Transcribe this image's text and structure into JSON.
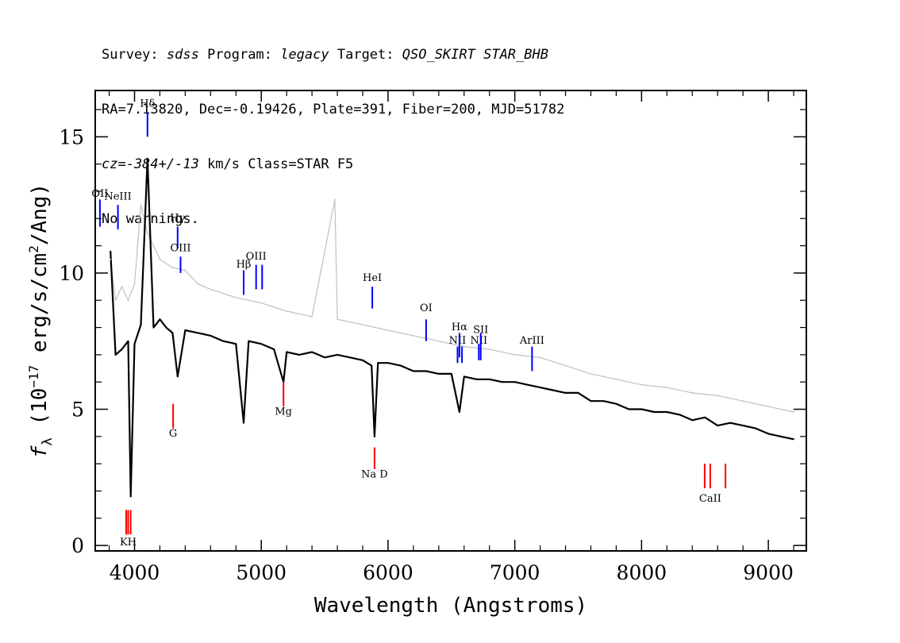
{
  "header": {
    "line1": {
      "survey_label": "Survey: ",
      "survey": "sdss",
      "program_label": " Program: ",
      "program": "legacy",
      "target_label": " Target: ",
      "target": "QSO_SKIRT STAR_BHB"
    },
    "line2": "RA=7.13820, Dec=-0.19426, Plate=391, Fiber=200, MJD=51782",
    "line3": {
      "cz": "cz=-384+/-13",
      "rest": " km/s Class=STAR F5"
    },
    "line4": "No warnings."
  },
  "colors": {
    "flux": "#000000",
    "error": "#c0c0c0",
    "emission_lines": "#0000ff",
    "absorption_lines": "#ff0000"
  },
  "chart_data": {
    "type": "line",
    "xlabel": "Wavelength (Angstroms)",
    "ylabel": "f_λ (10^-17 erg/s/cm²/Ang)",
    "ylabel_parts": {
      "sym": "f",
      "sub": "λ",
      "pre": " (10",
      "exp": "−17",
      "mid": " erg/s/cm",
      "exp2": "2",
      "post": "/Ang)"
    },
    "xlim": [
      3690,
      9300
    ],
    "ylim": [
      -0.2,
      16.7
    ],
    "xticks": [
      4000,
      5000,
      6000,
      7000,
      8000,
      9000
    ],
    "xtick_labels": [
      "4000",
      "5000",
      "6000",
      "7000",
      "8000",
      "9000"
    ],
    "yticks": [
      0,
      5,
      10,
      15
    ],
    "ytick_labels": [
      "0",
      "5",
      "10",
      "15"
    ],
    "grid": false,
    "series": [
      {
        "role": "flux",
        "x": [
          3810,
          3850,
          3900,
          3950,
          3970,
          4000,
          4050,
          4102,
          4150,
          4200,
          4250,
          4300,
          4340,
          4400,
          4500,
          4600,
          4700,
          4800,
          4861,
          4900,
          5000,
          5100,
          5175,
          5200,
          5300,
          5400,
          5500,
          5600,
          5700,
          5800,
          5870,
          5893,
          5920,
          6000,
          6100,
          6200,
          6300,
          6400,
          6500,
          6563,
          6600,
          6700,
          6800,
          6900,
          7000,
          7100,
          7200,
          7300,
          7400,
          7500,
          7600,
          7700,
          7800,
          7900,
          8000,
          8100,
          8200,
          8300,
          8400,
          8500,
          8600,
          8700,
          8800,
          8900,
          9000,
          9100,
          9200
        ],
        "y": [
          10.8,
          7.0,
          7.2,
          7.5,
          1.8,
          7.4,
          8.1,
          14.2,
          8.0,
          8.3,
          8.0,
          7.8,
          6.2,
          7.9,
          7.8,
          7.7,
          7.5,
          7.4,
          4.5,
          7.5,
          7.4,
          7.2,
          6.0,
          7.1,
          7.0,
          7.1,
          6.9,
          7.0,
          6.9,
          6.8,
          6.6,
          4.0,
          6.7,
          6.7,
          6.6,
          6.4,
          6.4,
          6.3,
          6.3,
          4.9,
          6.2,
          6.1,
          6.1,
          6.0,
          6.0,
          5.9,
          5.8,
          5.7,
          5.6,
          5.6,
          5.3,
          5.3,
          5.2,
          5.0,
          5.0,
          4.9,
          4.9,
          4.8,
          4.6,
          4.7,
          4.4,
          4.5,
          4.4,
          4.3,
          4.1,
          4.0,
          3.9
        ]
      },
      {
        "role": "error",
        "x": [
          3810,
          3850,
          3900,
          3950,
          4000,
          4050,
          4100,
          4200,
          4300,
          4400,
          4500,
          4600,
          4800,
          5000,
          5200,
          5400,
          5580,
          5600,
          5800,
          6000,
          6200,
          6400,
          6600,
          6800,
          7000,
          7200,
          7400,
          7600,
          7800,
          8000,
          8200,
          8400,
          8600,
          8800,
          9000,
          9200
        ],
        "y": [
          10.5,
          9.0,
          9.5,
          9.0,
          9.6,
          12.5,
          11.5,
          10.5,
          10.2,
          10.1,
          9.6,
          9.4,
          9.1,
          8.9,
          8.6,
          8.4,
          12.7,
          8.3,
          8.1,
          7.9,
          7.7,
          7.5,
          7.3,
          7.2,
          7.0,
          6.9,
          6.6,
          6.3,
          6.1,
          5.9,
          5.8,
          5.6,
          5.5,
          5.3,
          5.1,
          4.9
        ]
      }
    ],
    "line_markers": [
      {
        "label": "OII",
        "wave": 3727,
        "kind": "emission",
        "y_top": 12.7,
        "y_bot": 11.7,
        "label_y": 12.8
      },
      {
        "label": "NeIII",
        "wave": 3869,
        "kind": "emission",
        "y_top": 12.5,
        "y_bot": 11.6,
        "label_y": 12.7
      },
      {
        "label": "Hδ",
        "wave": 4102,
        "kind": "emission",
        "y_top": 15.9,
        "y_bot": 15.0,
        "label_y": 16.1
      },
      {
        "label": "Hγ",
        "wave": 4340,
        "kind": "emission",
        "y_top": 11.7,
        "y_bot": 10.9,
        "label_y": 11.9
      },
      {
        "label": "OIII",
        "wave": 4363,
        "kind": "emission",
        "y_top": 10.6,
        "y_bot": 10.0,
        "label_y": 10.8
      },
      {
        "label": "Hβ",
        "wave": 4861,
        "kind": "emission",
        "y_top": 10.1,
        "y_bot": 9.2,
        "label_y": 10.2
      },
      {
        "label": "OIII",
        "wave": 4959,
        "kind": "emission",
        "y_top": 10.3,
        "y_bot": 9.4,
        "label_y": 10.5
      },
      {
        "label": "",
        "wave": 5007,
        "kind": "emission",
        "y_top": 10.3,
        "y_bot": 9.4,
        "label_y": 10.5
      },
      {
        "label": "HeI",
        "wave": 5876,
        "kind": "emission",
        "y_top": 9.5,
        "y_bot": 8.7,
        "label_y": 9.7
      },
      {
        "label": "OI",
        "wave": 6300,
        "kind": "emission",
        "y_top": 8.3,
        "y_bot": 7.5,
        "label_y": 8.6
      },
      {
        "label": "NII",
        "wave": 6548,
        "kind": "emission",
        "y_top": 7.3,
        "y_bot": 6.7,
        "label_y": 7.4
      },
      {
        "label": "Hα",
        "wave": 6563,
        "kind": "emission",
        "y_top": 7.8,
        "y_bot": 6.9,
        "label_y": 7.9
      },
      {
        "label": "",
        "wave": 6583,
        "kind": "emission",
        "y_top": 7.3,
        "y_bot": 6.7,
        "label_y": 7.4
      },
      {
        "label": "NII",
        "wave": 6716,
        "kind": "emission",
        "y_top": 7.4,
        "y_bot": 6.8,
        "label_y": 7.4
      },
      {
        "label": "SII",
        "wave": 6731,
        "kind": "emission",
        "y_top": 7.8,
        "y_bot": 6.8,
        "label_y": 7.8
      },
      {
        "label": "ArIII",
        "wave": 7136,
        "kind": "emission",
        "y_top": 7.3,
        "y_bot": 6.4,
        "label_y": 7.4
      },
      {
        "label": "G",
        "wave": 4304,
        "kind": "absorption",
        "y_top": 5.2,
        "y_bot": 4.3,
        "label_y": 4.0
      },
      {
        "label": "Mg",
        "wave": 5175,
        "kind": "absorption",
        "y_top": 6.0,
        "y_bot": 5.1,
        "label_y": 4.8
      },
      {
        "label": "Na D",
        "wave": 5893,
        "kind": "absorption",
        "y_top": 3.6,
        "y_bot": 2.8,
        "label_y": 2.5
      },
      {
        "label": "KH",
        "wave": 3950,
        "kind": "absorption",
        "y_top": 1.3,
        "y_bot": 0.4,
        "label_y": 0.0
      },
      {
        "label": "",
        "wave": 3934,
        "kind": "absorption",
        "y_top": 1.3,
        "y_bot": 0.4,
        "label_y": 0.0
      },
      {
        "label": "",
        "wave": 3969,
        "kind": "absorption",
        "y_top": 1.3,
        "y_bot": 0.4,
        "label_y": 0.0
      },
      {
        "label": "CaII",
        "wave": 8542,
        "kind": "absorption",
        "y_top": 3.0,
        "y_bot": 2.1,
        "label_y": 1.6
      },
      {
        "label": "",
        "wave": 8498,
        "kind": "absorption",
        "y_top": 3.0,
        "y_bot": 2.1,
        "label_y": 1.6
      },
      {
        "label": "",
        "wave": 8662,
        "kind": "absorption",
        "y_top": 3.0,
        "y_bot": 2.1,
        "label_y": 1.6
      }
    ]
  }
}
